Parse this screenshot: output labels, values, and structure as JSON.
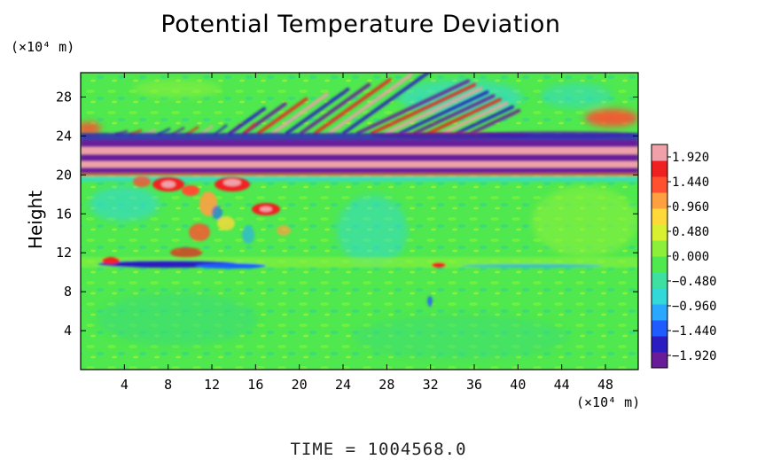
{
  "chart_data": {
    "type": "heatmap",
    "title": "Potential Temperature Deviation",
    "ylabel": "Height",
    "x_unit": "(×10⁴ m)",
    "y_unit": "(×10⁴ m)",
    "x_ticks": [
      4,
      8,
      12,
      16,
      20,
      24,
      28,
      32,
      36,
      40,
      44,
      48
    ],
    "y_ticks": [
      4,
      8,
      12,
      16,
      20,
      24,
      28
    ],
    "xlim": [
      0,
      51
    ],
    "ylim": [
      0,
      30.5
    ],
    "colorbar": {
      "labels": [
        "1.920",
        "1.440",
        "0.960",
        "0.480",
        "0.000",
        "−0.480",
        "−0.960",
        "−1.440",
        "−1.920"
      ],
      "range": [
        -2.16,
        2.16
      ],
      "colors": [
        "#6a1b9a",
        "#2a1cc0",
        "#1f5bff",
        "#2aa8ff",
        "#33d9d9",
        "#3de0a0",
        "#4fe84f",
        "#8cf03a",
        "#d8f030",
        "#ffd83a",
        "#ffa040",
        "#ff5030",
        "#f02020",
        "#f0a0a8"
      ]
    },
    "grid": false,
    "bands": [
      {
        "name": "stratosphere-band",
        "y_range": [
          20,
          23
        ],
        "value": "alternating ±1.92"
      },
      {
        "name": "tropopause-layer",
        "y_range": [
          10,
          11
        ],
        "value": "approx -1.4"
      }
    ],
    "time_label": "TIME",
    "time_value": "1004568.0"
  }
}
